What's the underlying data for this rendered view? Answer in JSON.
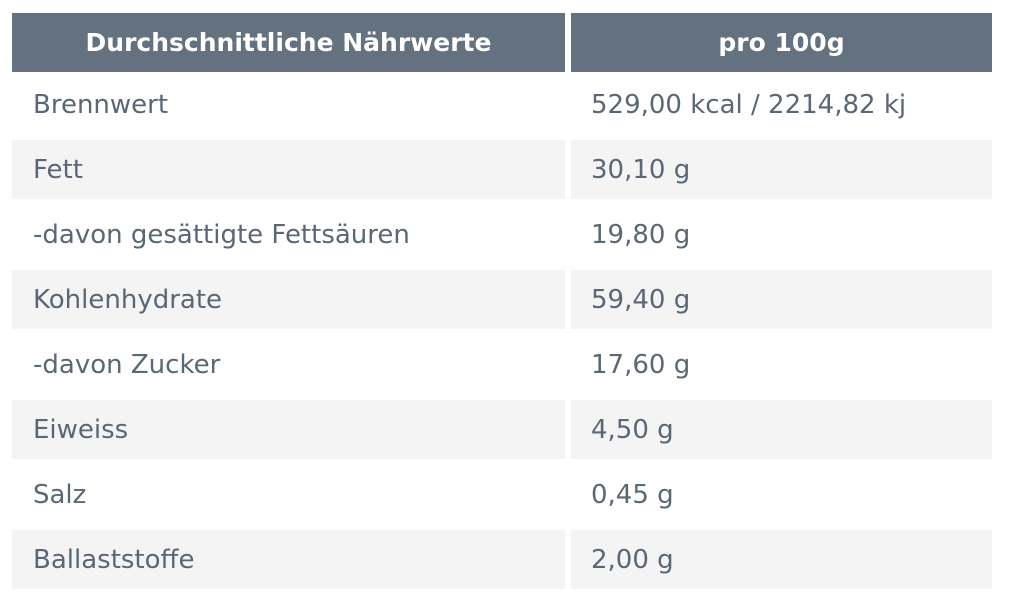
{
  "table": {
    "header": {
      "col1": "Durchschnittliche Nährwerte",
      "col2": "pro 100g"
    },
    "rows": [
      {
        "name": "Brennwert",
        "value": "529,00 kcal / 2214,82 kj"
      },
      {
        "name": "Fett",
        "value": "30,10 g"
      },
      {
        "name": "-davon gesättigte Fettsäuren",
        "value": "19,80 g"
      },
      {
        "name": "Kohlenhydrate",
        "value": "59,40 g"
      },
      {
        "name": "-davon Zucker",
        "value": "17,60 g"
      },
      {
        "name": "Eiweiss",
        "value": "4,50 g"
      },
      {
        "name": "Salz",
        "value": "0,45 g"
      },
      {
        "name": "Ballaststoffe",
        "value": "2,00 g"
      }
    ]
  },
  "colors": {
    "header_bg": "#64717f",
    "header_text": "#ffffff",
    "row_shade": "#f4f4f4",
    "body_text": "#5c6775"
  }
}
